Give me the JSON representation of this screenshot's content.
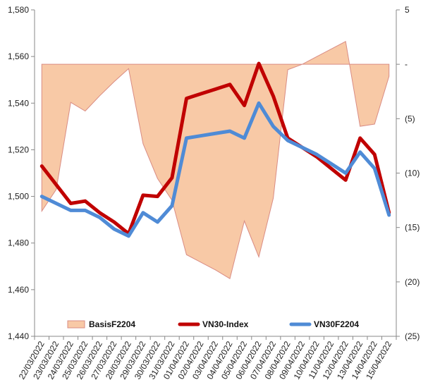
{
  "chart_data": {
    "type": "line",
    "categories": [
      "22/03/2022",
      "23/03/2022",
      "24/03/2022",
      "25/03/2022",
      "26/03/2022",
      "27/03/2022",
      "28/03/2022",
      "29/03/2022",
      "30/03/2022",
      "31/03/2022",
      "01/04/2022",
      "02/04/2022",
      "03/04/2022",
      "04/04/2022",
      "05/04/2022",
      "06/04/2022",
      "07/04/2022",
      "08/04/2022",
      "09/04/2022",
      "10/04/2022",
      "11/04/2022",
      "12/04/2022",
      "13/04/2022",
      "14/04/2022",
      "15/04/2022"
    ],
    "left_axis": {
      "min": 1440,
      "max": 1580,
      "ticks": [
        "1,440",
        "1,460",
        "1,480",
        "1,500",
        "1,520",
        "1,540",
        "1,560",
        "1,580"
      ],
      "tick_values": [
        1440,
        1460,
        1480,
        1500,
        1520,
        1540,
        1560,
        1580
      ]
    },
    "right_axis": {
      "min": -25,
      "max": 5,
      "ticks": [
        "(25)",
        "(20)",
        "(15)",
        "(10)",
        "(5)",
        "-",
        "5"
      ],
      "tick_values": [
        -25,
        -20,
        -15,
        -10,
        -5,
        0,
        5
      ]
    },
    "series": [
      {
        "name": "BasisF2204",
        "kind": "area",
        "axis": "right",
        "color": "#f8c9a6",
        "edge_color": "#d98c84",
        "values": [
          -13.5,
          -11.5,
          -3.5,
          -4.3,
          -2.9,
          -1.6,
          -0.4,
          -7.3,
          -10.5,
          -12.5,
          -17.5,
          -18.2,
          -18.9,
          -19.7,
          -14.4,
          -17.7,
          -12.3,
          -0.5,
          0,
          0.7,
          1.4,
          2.1,
          -5.7,
          -5.5,
          -1.1
        ]
      },
      {
        "name": "VN30-Index",
        "kind": "line",
        "axis": "left",
        "color": "#c00000",
        "values": [
          1513,
          1505,
          1497,
          1498,
          1493,
          1489,
          1484,
          1500.5,
          1500,
          1508,
          1542,
          1544,
          1546,
          1548,
          1539,
          1557,
          1543,
          1525,
          1521,
          1517,
          1512,
          1507,
          1525,
          1518,
          1493
        ]
      },
      {
        "name": "VN30F2204",
        "kind": "line",
        "axis": "left",
        "color": "#4f8bd6",
        "values": [
          1500,
          1497,
          1494,
          1494,
          1491,
          1486,
          1483,
          1493,
          1489,
          1496,
          1525,
          1526,
          1527,
          1528,
          1525,
          1540,
          1530,
          1524,
          1521,
          1518,
          1514,
          1510,
          1519,
          1512,
          1492
        ]
      }
    ],
    "legend": {
      "position": "bottom-inside",
      "items": [
        "BasisF2204",
        "VN30-Index",
        "VN30F2204"
      ]
    }
  }
}
